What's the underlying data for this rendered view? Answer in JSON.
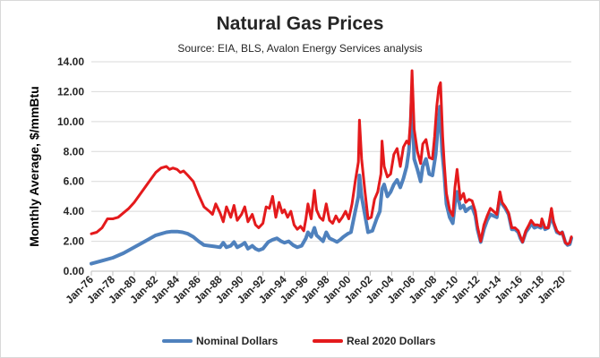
{
  "chart_data": {
    "type": "line",
    "title": "Natural Gas Prices",
    "subtitle": "Source: EIA, BLS, Avalon Energy Services analysis",
    "xlabel": "",
    "ylabel": "Monthly Average, $/mmBtu",
    "ylim": [
      0,
      14
    ],
    "xlim": [
      1976.0,
      2020.75
    ],
    "y_ticks": [
      0,
      2,
      4,
      6,
      8,
      10,
      12,
      14
    ],
    "y_tick_labels": [
      "0.00",
      "2.00",
      "4.00",
      "6.00",
      "8.00",
      "10.00",
      "12.00",
      "14.00"
    ],
    "x_ticks": [
      1976,
      1978,
      1980,
      1982,
      1984,
      1986,
      1988,
      1990,
      1992,
      1994,
      1996,
      1998,
      2000,
      2002,
      2004,
      2006,
      2008,
      2010,
      2012,
      2014,
      2016,
      2018,
      2020
    ],
    "x_tick_labels": [
      "Jan-76",
      "Jan-78",
      "Jan-80",
      "Jan-82",
      "Jan-84",
      "Jan-86",
      "Jan-88",
      "Jan-90",
      "Jan-92",
      "Jan-94",
      "Jan-96",
      "Jan-98",
      "Jan-00",
      "Jan-02",
      "Jan-04",
      "Jan-06",
      "Jan-08",
      "Jan-10",
      "Jan-12",
      "Jan-14",
      "Jan-16",
      "Jan-18",
      "Jan-20"
    ],
    "grid": {
      "y": true,
      "x": false
    },
    "legend_position": "bottom",
    "series": [
      {
        "name": "Nominal Dollars",
        "color": "#4f81bd",
        "x": [
          1976.0,
          1977.0,
          1978.0,
          1979.0,
          1980.0,
          1981.0,
          1982.0,
          1983.0,
          1983.5,
          1984.0,
          1984.5,
          1985.0,
          1985.5,
          1986.0,
          1986.5,
          1987.0,
          1987.5,
          1988.0,
          1988.3,
          1988.6,
          1989.0,
          1989.3,
          1989.6,
          1990.0,
          1990.3,
          1990.6,
          1991.0,
          1991.3,
          1991.6,
          1992.0,
          1992.5,
          1992.9,
          1993.3,
          1993.7,
          1994.0,
          1994.4,
          1994.8,
          1995.2,
          1995.6,
          1996.0,
          1996.2,
          1996.5,
          1996.8,
          1997.0,
          1997.3,
          1997.6,
          1997.9,
          1998.2,
          1998.5,
          1998.9,
          1999.2,
          1999.5,
          1999.9,
          2000.2,
          2000.6,
          2000.9,
          2001.0,
          2001.2,
          2001.5,
          2001.8,
          2002.2,
          2002.6,
          2002.9,
          2003.1,
          2003.3,
          2003.6,
          2003.9,
          2004.2,
          2004.5,
          2004.8,
          2005.1,
          2005.4,
          2005.6,
          2005.75,
          2005.9,
          2006.1,
          2006.4,
          2006.7,
          2006.9,
          2007.2,
          2007.5,
          2007.8,
          2008.1,
          2008.3,
          2008.5,
          2008.7,
          2008.9,
          2009.1,
          2009.4,
          2009.7,
          2009.9,
          2010.1,
          2010.4,
          2010.7,
          2010.9,
          2011.2,
          2011.5,
          2011.8,
          2012.0,
          2012.3,
          2012.6,
          2012.9,
          2013.2,
          2013.5,
          2013.8,
          2014.1,
          2014.3,
          2014.6,
          2014.9,
          2015.2,
          2015.5,
          2015.8,
          2016.0,
          2016.2,
          2016.5,
          2016.8,
          2017.0,
          2017.3,
          2017.6,
          2017.9,
          2018.0,
          2018.3,
          2018.6,
          2018.9,
          2019.1,
          2019.4,
          2019.7,
          2019.9,
          2020.2,
          2020.4,
          2020.6,
          2020.75
        ],
        "values": [
          0.5,
          0.7,
          0.9,
          1.2,
          1.6,
          2.0,
          2.4,
          2.6,
          2.65,
          2.65,
          2.6,
          2.5,
          2.3,
          2.0,
          1.75,
          1.7,
          1.65,
          1.6,
          1.9,
          1.6,
          1.7,
          1.95,
          1.6,
          1.75,
          1.9,
          1.5,
          1.7,
          1.5,
          1.4,
          1.5,
          1.95,
          2.1,
          2.2,
          2.0,
          1.9,
          2.0,
          1.75,
          1.6,
          1.7,
          2.2,
          2.6,
          2.3,
          2.9,
          2.4,
          2.2,
          2.0,
          2.6,
          2.2,
          2.1,
          1.95,
          2.1,
          2.3,
          2.5,
          2.6,
          4.0,
          5.0,
          6.4,
          5.0,
          3.8,
          2.6,
          2.7,
          3.5,
          4.0,
          5.5,
          5.8,
          5.0,
          5.3,
          5.8,
          6.1,
          5.6,
          6.2,
          7.0,
          8.0,
          9.4,
          12.2,
          7.5,
          6.8,
          6.0,
          7.0,
          7.5,
          6.5,
          6.4,
          7.8,
          9.5,
          11.0,
          8.0,
          6.5,
          4.5,
          3.6,
          3.2,
          4.5,
          5.3,
          4.2,
          4.4,
          4.0,
          4.2,
          4.3,
          3.7,
          2.8,
          1.95,
          2.8,
          3.4,
          3.8,
          3.7,
          3.6,
          5.0,
          4.5,
          4.2,
          3.8,
          2.8,
          2.8,
          2.6,
          2.2,
          1.95,
          2.6,
          2.9,
          3.2,
          2.9,
          3.0,
          2.9,
          3.3,
          2.8,
          2.9,
          3.7,
          3.2,
          2.6,
          2.5,
          2.6,
          1.9,
          1.75,
          1.8,
          2.2
        ]
      },
      {
        "name": "Real 2020 Dollars",
        "color": "#e41a1c",
        "x": [
          1976.0,
          1976.5,
          1977.0,
          1977.5,
          1978.0,
          1978.5,
          1979.0,
          1979.5,
          1980.0,
          1980.5,
          1981.0,
          1981.5,
          1982.0,
          1982.5,
          1983.0,
          1983.3,
          1983.6,
          1984.0,
          1984.3,
          1984.6,
          1985.0,
          1985.5,
          1986.0,
          1986.5,
          1987.0,
          1987.3,
          1987.6,
          1988.0,
          1988.3,
          1988.6,
          1989.0,
          1989.3,
          1989.6,
          1990.0,
          1990.3,
          1990.6,
          1991.0,
          1991.3,
          1991.6,
          1992.0,
          1992.3,
          1992.6,
          1992.9,
          1993.2,
          1993.5,
          1993.8,
          1994.0,
          1994.3,
          1994.6,
          1994.9,
          1995.2,
          1995.5,
          1995.8,
          1996.0,
          1996.2,
          1996.5,
          1996.8,
          1997.0,
          1997.3,
          1997.6,
          1997.9,
          1998.2,
          1998.5,
          1998.8,
          1999.1,
          1999.4,
          1999.7,
          2000.0,
          2000.3,
          2000.6,
          2000.9,
          2001.0,
          2001.2,
          2001.5,
          2001.8,
          2002.1,
          2002.4,
          2002.7,
          2003.0,
          2003.1,
          2003.3,
          2003.6,
          2003.9,
          2004.2,
          2004.5,
          2004.8,
          2005.1,
          2005.4,
          2005.6,
          2005.75,
          2005.9,
          2006.1,
          2006.4,
          2006.7,
          2006.9,
          2007.2,
          2007.5,
          2007.8,
          2008.0,
          2008.2,
          2008.4,
          2008.55,
          2008.75,
          2008.9,
          2009.1,
          2009.4,
          2009.7,
          2009.9,
          2010.1,
          2010.4,
          2010.7,
          2010.9,
          2011.2,
          2011.5,
          2011.8,
          2012.0,
          2012.3,
          2012.6,
          2012.9,
          2013.2,
          2013.5,
          2013.8,
          2014.1,
          2014.3,
          2014.6,
          2014.9,
          2015.2,
          2015.5,
          2015.8,
          2016.0,
          2016.2,
          2016.5,
          2016.8,
          2017.0,
          2017.3,
          2017.6,
          2017.9,
          2018.0,
          2018.3,
          2018.6,
          2018.9,
          2019.1,
          2019.4,
          2019.7,
          2019.9,
          2020.2,
          2020.4,
          2020.6,
          2020.75
        ],
        "values": [
          2.5,
          2.6,
          2.9,
          3.5,
          3.5,
          3.6,
          3.9,
          4.2,
          4.6,
          5.1,
          5.6,
          6.1,
          6.6,
          6.9,
          7.0,
          6.8,
          6.9,
          6.8,
          6.6,
          6.7,
          6.4,
          6.0,
          5.1,
          4.3,
          4.0,
          3.8,
          4.5,
          3.9,
          3.3,
          4.3,
          3.6,
          4.4,
          3.4,
          3.8,
          4.3,
          3.3,
          3.8,
          3.1,
          2.9,
          3.2,
          4.3,
          4.2,
          5.0,
          3.6,
          4.6,
          3.9,
          4.1,
          3.6,
          4.0,
          3.1,
          2.8,
          3.0,
          2.7,
          3.5,
          4.5,
          3.5,
          5.4,
          4.1,
          3.6,
          3.4,
          4.5,
          3.4,
          3.2,
          3.7,
          3.3,
          3.6,
          4.0,
          3.5,
          4.5,
          6.0,
          7.3,
          10.1,
          7.5,
          5.4,
          3.5,
          3.6,
          4.8,
          5.3,
          6.5,
          8.7,
          7.0,
          6.3,
          6.5,
          7.8,
          8.2,
          7.0,
          8.3,
          8.7,
          8.5,
          10.0,
          13.4,
          9.5,
          8.0,
          7.2,
          8.5,
          8.8,
          7.6,
          7.5,
          9.0,
          11.0,
          12.3,
          12.6,
          9.0,
          7.2,
          5.2,
          4.1,
          3.7,
          5.6,
          6.8,
          4.8,
          5.2,
          4.6,
          4.8,
          4.7,
          4.0,
          3.0,
          2.0,
          3.1,
          3.7,
          4.2,
          4.0,
          3.8,
          5.3,
          4.6,
          4.3,
          3.9,
          2.9,
          2.9,
          2.7,
          2.3,
          1.95,
          2.7,
          3.1,
          3.4,
          3.1,
          3.1,
          3.0,
          3.5,
          2.9,
          2.9,
          4.2,
          3.3,
          2.7,
          2.5,
          2.6,
          1.9,
          1.8,
          1.9,
          2.3
        ]
      }
    ]
  }
}
